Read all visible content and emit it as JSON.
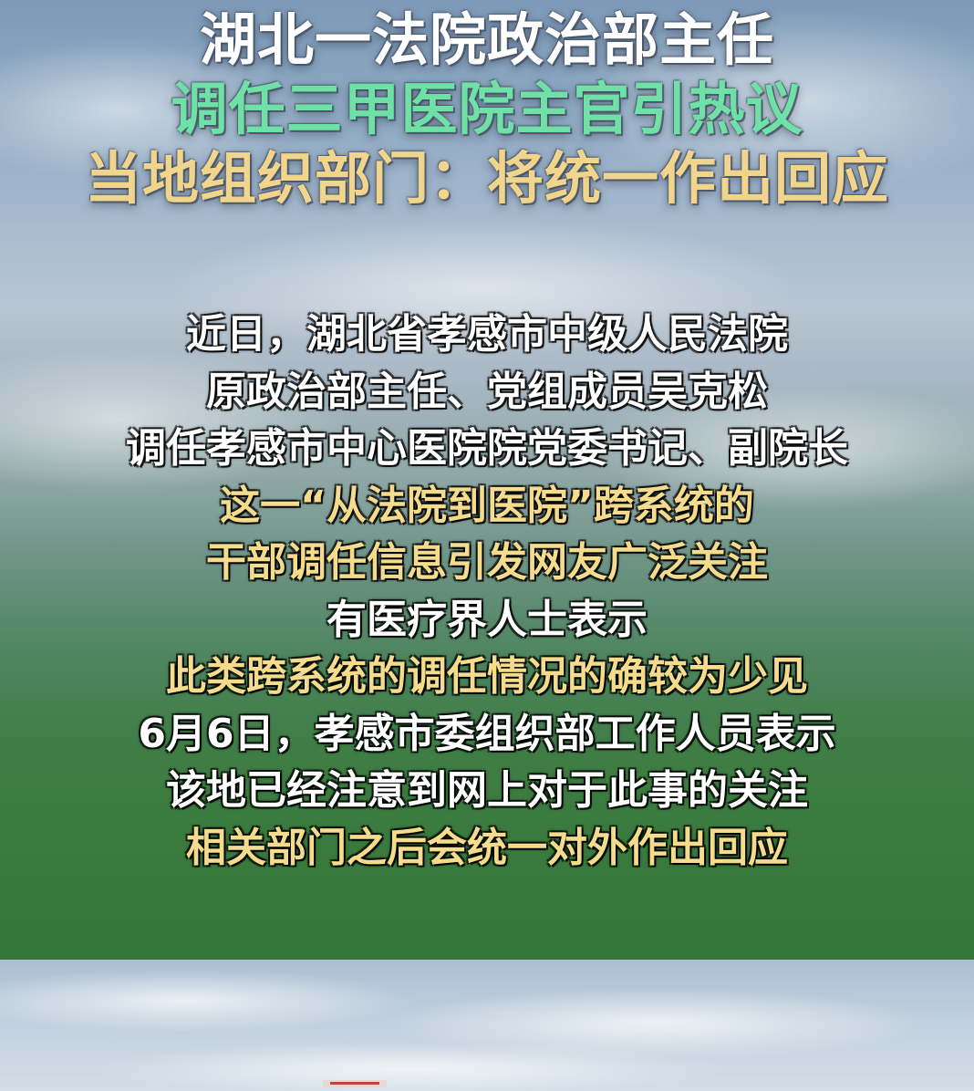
{
  "headline": {
    "line1": "湖北一法院政治部主任",
    "line2": "调任三甲医院主官引热议",
    "line3": "当地组织部门：将统一作出回应"
  },
  "body": [
    {
      "text": "近日，湖北省孝感市中级人民法院",
      "tone": "white"
    },
    {
      "text": "原政治部主任、党组成员吴克松",
      "tone": "white"
    },
    {
      "text": "调任孝感市中心医院院党委书记、副院长",
      "tone": "white"
    },
    {
      "text": "这一“从法院到医院”跨系统的",
      "tone": "gold"
    },
    {
      "text": "干部调任信息引发网友广泛关注",
      "tone": "gold"
    },
    {
      "text": "有医疗界人士表示",
      "tone": "white"
    },
    {
      "text": "此类跨系统的调任情况的确较为少见",
      "tone": "gold"
    },
    {
      "text": "6月6日，孝感市委组织部工作人员表示",
      "tone": "white"
    },
    {
      "text": "该地已经注意到网上对于此事的关注",
      "tone": "white"
    },
    {
      "text": "相关部门之后会统一对外作出回应",
      "tone": "gold"
    }
  ],
  "colors": {
    "headline_line1": "#ffffff",
    "headline_line2": "#6fe0a6",
    "headline_line3": "#f2d58c",
    "body_white": "#ffffff",
    "body_gold": "#f5dc8c"
  }
}
